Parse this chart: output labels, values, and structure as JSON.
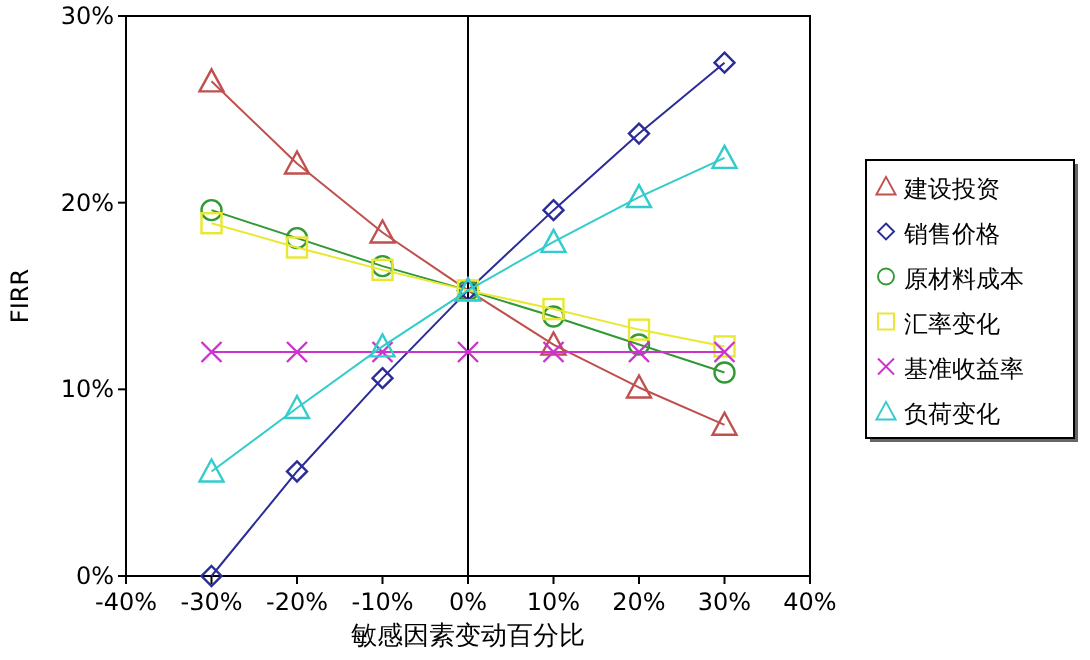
{
  "chart_data": {
    "type": "line",
    "xlabel": "敏感因素变动百分比",
    "ylabel": "FIRR",
    "x": [
      -30,
      -20,
      -10,
      0,
      10,
      20,
      30
    ],
    "xlim": [
      -40,
      40
    ],
    "xticks": [
      {
        "value": -40,
        "label": "-40%"
      },
      {
        "value": -30,
        "label": "-30%"
      },
      {
        "value": -20,
        "label": "-20%"
      },
      {
        "value": -10,
        "label": "-10%"
      },
      {
        "value": 0,
        "label": "0%"
      },
      {
        "value": 10,
        "label": "10%"
      },
      {
        "value": 20,
        "label": "20%"
      },
      {
        "value": 30,
        "label": "30%"
      },
      {
        "value": 40,
        "label": "40%"
      }
    ],
    "ylim": [
      0,
      30
    ],
    "yticks": [
      {
        "value": 0,
        "label": "0%"
      },
      {
        "value": 10,
        "label": "10%"
      },
      {
        "value": 20,
        "label": "20%"
      },
      {
        "value": 30,
        "label": "30%"
      }
    ],
    "grid": false,
    "legend": "right",
    "line_style": "solid",
    "ref_lines": [
      {
        "axis": "x",
        "value": 0,
        "color": "#000000"
      }
    ],
    "series": [
      {
        "name": "建设投资",
        "color": "#c0504d",
        "marker": "triangle",
        "values": [
          26.5,
          22.1,
          18.4,
          15.3,
          12.4,
          10.1,
          8.1
        ]
      },
      {
        "name": "销售价格",
        "color": "#2b2b99",
        "marker": "diamond",
        "values": [
          0,
          5.6,
          10.6,
          15.3,
          19.6,
          23.7,
          27.5
        ]
      },
      {
        "name": "原材料成本",
        "color": "#339933",
        "marker": "circle",
        "values": [
          19.6,
          18.1,
          16.6,
          15.3,
          13.9,
          12.4,
          10.9
        ]
      },
      {
        "name": "汇率变化",
        "color": "#e8e830",
        "marker": "square",
        "values": [
          18.9,
          17.6,
          16.4,
          15.3,
          14.3,
          13.2,
          12.3
        ]
      },
      {
        "name": "基准收益率",
        "color": "#cc33cc",
        "marker": "cross",
        "values": [
          12,
          12,
          12,
          12,
          12,
          12,
          12
        ]
      },
      {
        "name": "负荷变化",
        "color": "#33cccc",
        "marker": "triangle",
        "values": [
          5.6,
          9.0,
          12.3,
          15.3,
          17.9,
          20.3,
          22.4
        ]
      }
    ]
  }
}
